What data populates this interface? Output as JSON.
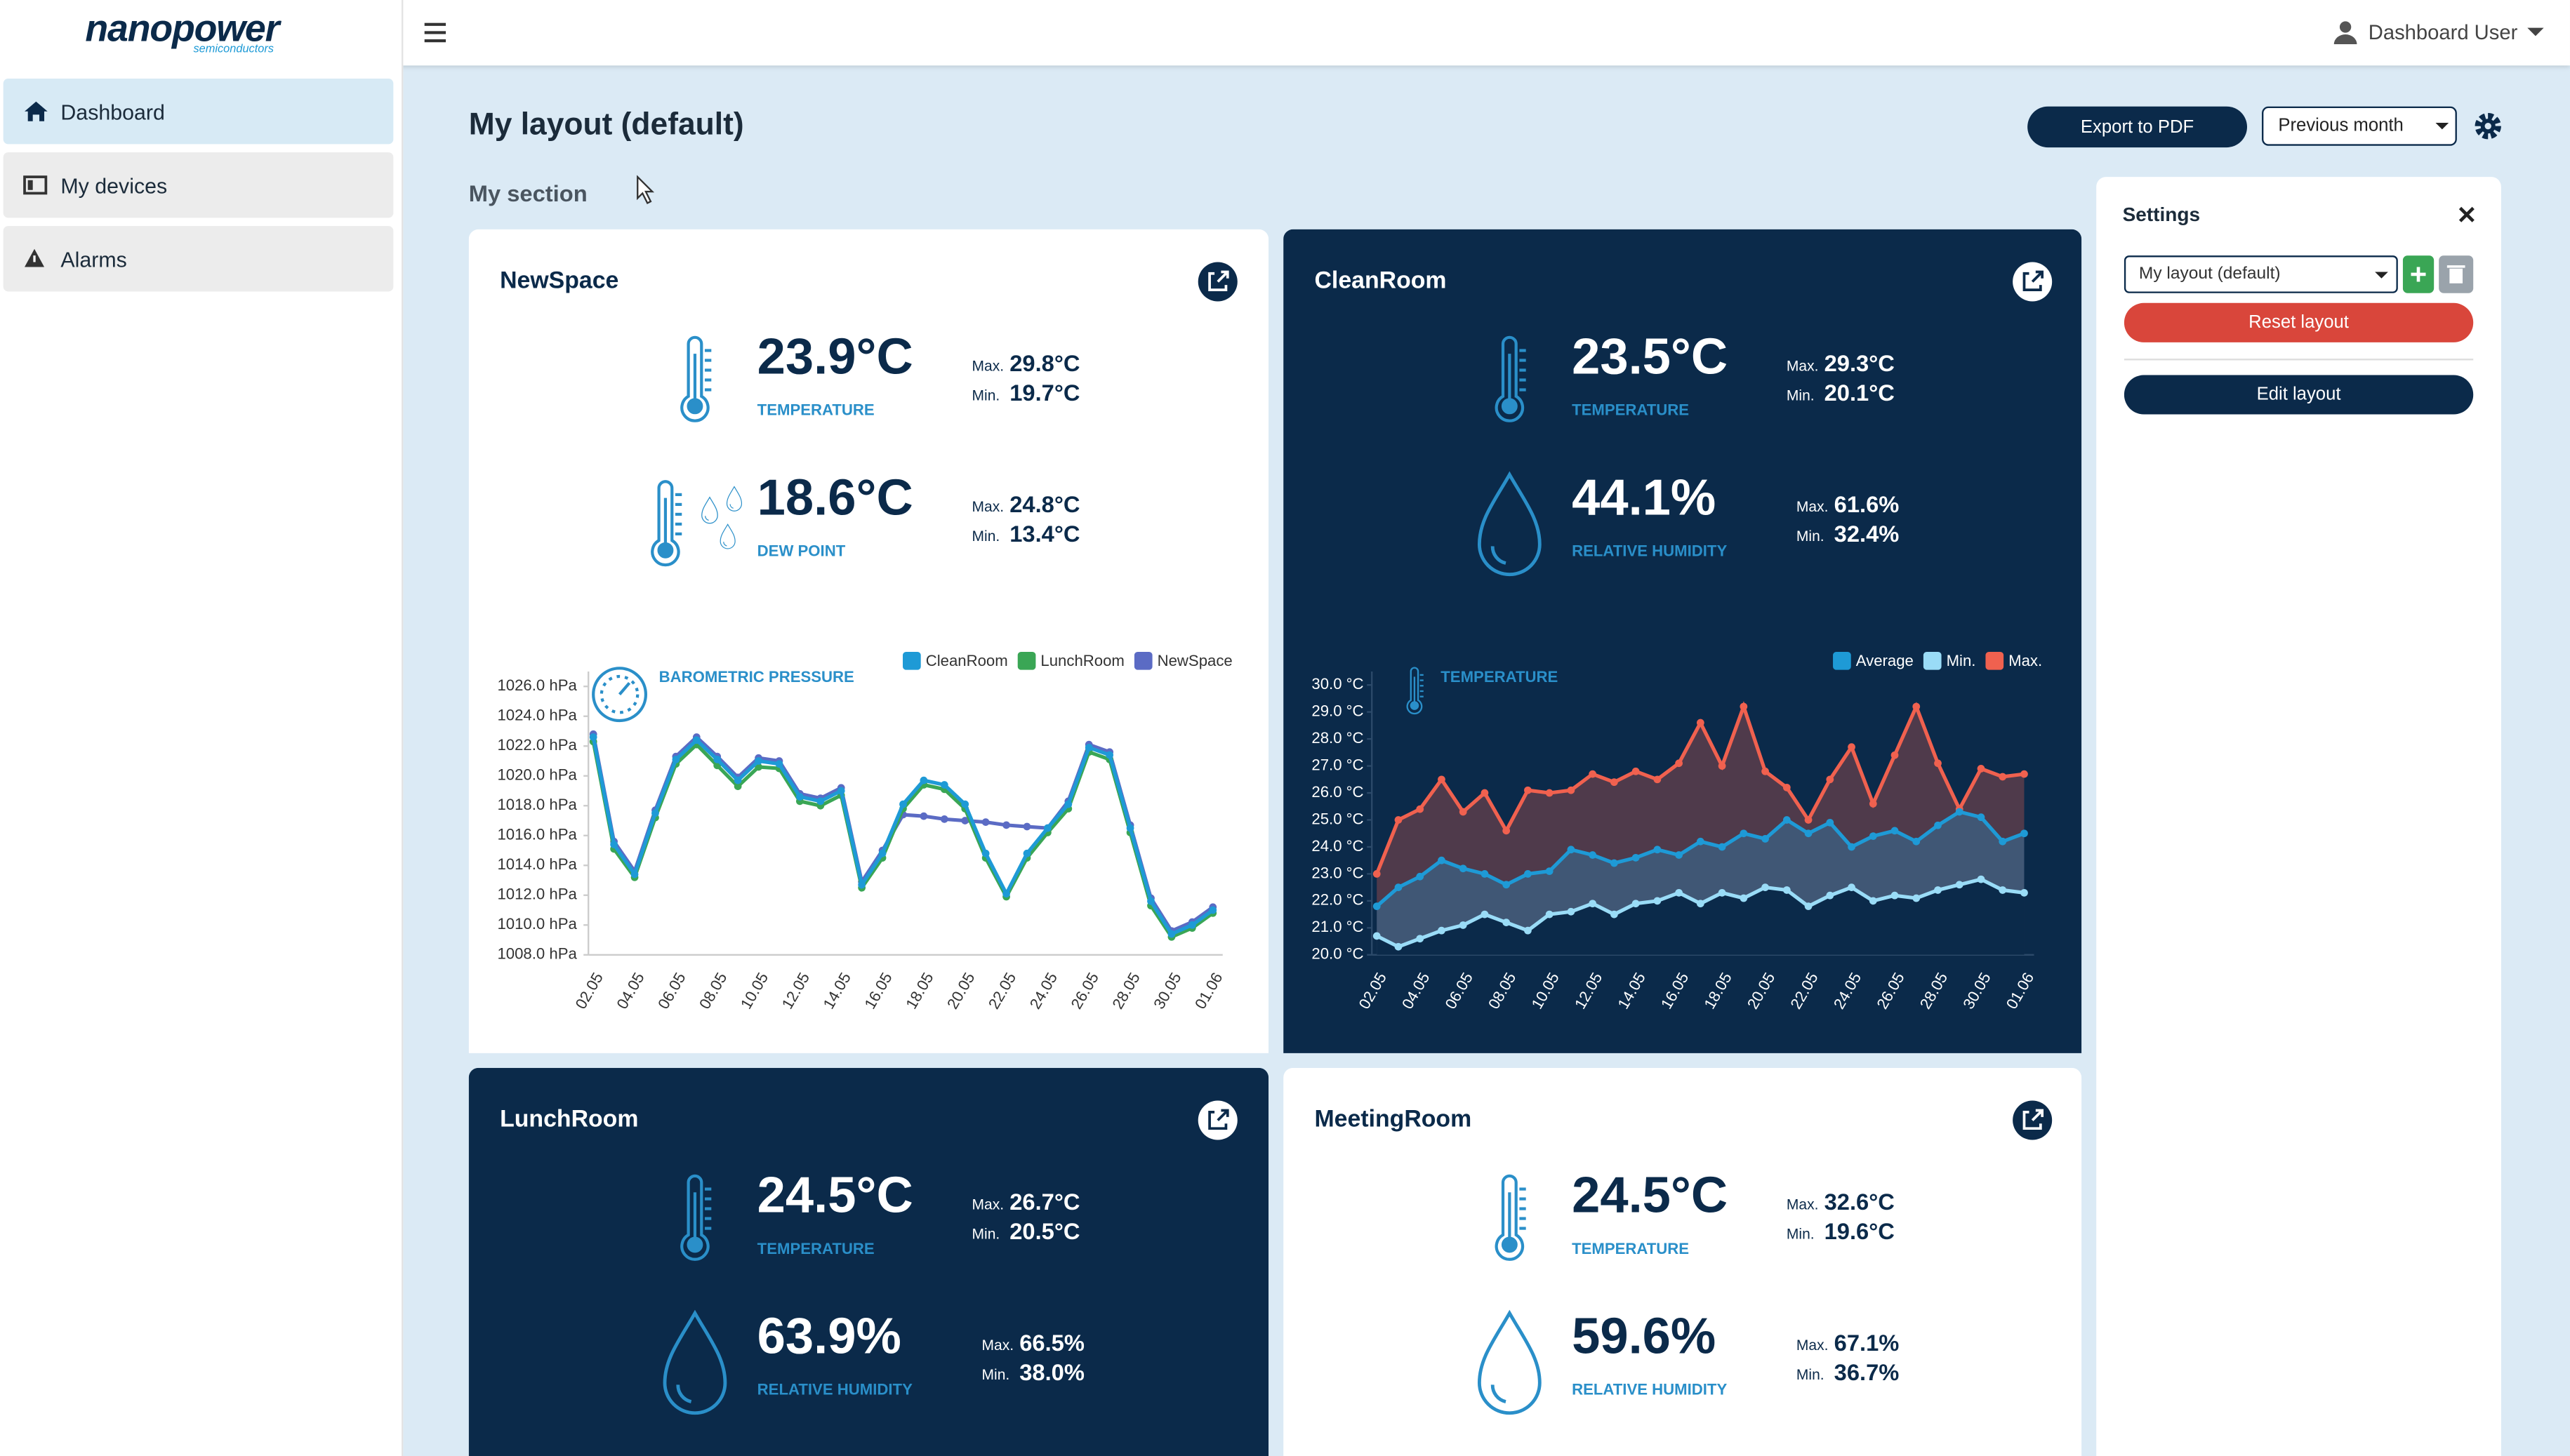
{
  "brand": {
    "name": "nanopower",
    "tagline": "semiconductors"
  },
  "sidebar": [
    "Dashboard",
    "My devices",
    "Alarms"
  ],
  "user": "Dashboard User",
  "page_title": "My layout (default)",
  "buttons": {
    "export": "Export to PDF",
    "period": "Previous month"
  },
  "section": "My section",
  "settings": {
    "title": "Settings",
    "layout": "My layout (default)",
    "reset": "Reset layout",
    "edit": "Edit layout"
  },
  "labels": {
    "max": "Max.",
    "min": "Min."
  },
  "cards": [
    {
      "name": "NewSpace",
      "background": "#ffffff",
      "metrics": [
        {
          "value": "23.9°C",
          "label": "TEMPERATURE",
          "max": "29.8°C",
          "min": "19.7°C"
        },
        {
          "value": "18.6°C",
          "label": "DEW POINT",
          "max": "24.8°C",
          "min": "13.4°C"
        }
      ],
      "chart": {
        "type": "line",
        "title": "BAROMETRIC PRESSURE",
        "fill_area": false,
        "categories": [
          "02.05",
          null,
          "04.05",
          null,
          "06.05",
          null,
          "08.05",
          null,
          "10.05",
          null,
          "12.05",
          null,
          "14.05",
          null,
          "16.05",
          null,
          "18.05",
          null,
          "20.05",
          null,
          "22.05",
          null,
          "24.05",
          null,
          "26.05",
          null,
          "28.05",
          null,
          "30.05",
          null,
          "01.06"
        ],
        "ylim": [
          1008,
          1027
        ],
        "yticks": [
          {
            "value": 1008,
            "label": "1008.0 hPa"
          },
          {
            "value": 1010,
            "label": "1010.0 hPa"
          },
          {
            "value": 1012,
            "label": "1012.0 hPa"
          },
          {
            "value": 1014,
            "label": "1014.0 hPa"
          },
          {
            "value": 1016,
            "label": "1016.0 hPa"
          },
          {
            "value": 1018,
            "label": "1018.0 hPa"
          },
          {
            "value": 1020,
            "label": "1020.0 hPa"
          },
          {
            "value": 1022,
            "label": "1022.0 hPa"
          },
          {
            "value": 1024,
            "label": "1024.0 hPa"
          },
          {
            "value": 1026,
            "label": "1026.0 hPa"
          }
        ],
        "series": [
          {
            "name": "CleanRoom",
            "color": "#1e9ad6",
            "values": [
              1022.6,
              1015.4,
              1013.4,
              1017.5,
              1021.1,
              1022.4,
              1021.1,
              1019.7,
              1021.0,
              1020.8,
              1018.6,
              1018.3,
              1019.0,
              1012.7,
              1014.8,
              1018.1,
              1019.7,
              1019.4,
              1018.1,
              1014.8,
              1012.1,
              1014.8,
              1016.5,
              1018.1,
              1021.9,
              1021.4,
              1016.5,
              1011.6,
              1009.4,
              1010.0,
              1011.0
            ]
          },
          {
            "name": "LunchRoom",
            "color": "#3aa655",
            "values": [
              1022.3,
              1015.1,
              1013.2,
              1017.2,
              1020.8,
              1022.1,
              1020.7,
              1019.3,
              1020.6,
              1020.5,
              1018.3,
              1018.0,
              1018.7,
              1012.5,
              1014.5,
              1017.8,
              1019.4,
              1019.1,
              1017.8,
              1014.5,
              1011.9,
              1014.5,
              1016.2,
              1017.8,
              1021.6,
              1021.1,
              1016.2,
              1011.3,
              1009.2,
              1009.8,
              1010.8
            ]
          },
          {
            "name": "NewSpace",
            "color": "#5b6bc4",
            "values": [
              1022.8,
              1015.6,
              1013.6,
              1017.7,
              1021.3,
              1022.6,
              1021.3,
              1019.9,
              1021.2,
              1021.0,
              1018.8,
              1018.5,
              1019.2,
              1012.9,
              1015.0,
              1017.4,
              1017.3,
              1017.1,
              1017.0,
              1016.9,
              1016.7,
              1016.6,
              1016.5,
              1018.3,
              1022.1,
              1021.6,
              1016.7,
              1011.8,
              1009.6,
              1010.2,
              1011.2
            ]
          }
        ]
      }
    },
    {
      "name": "CleanRoom",
      "background": "#0b2a4a",
      "metrics": [
        {
          "value": "23.5°C",
          "label": "TEMPERATURE",
          "max": "29.3°C",
          "min": "20.1°C"
        },
        {
          "value": "44.1%",
          "label": "RELATIVE HUMIDITY",
          "max": "61.6%",
          "min": "32.4%"
        }
      ],
      "chart": {
        "type": "line",
        "title": "TEMPERATURE",
        "fill_area": true,
        "categories": [
          "02.05",
          null,
          "04.05",
          null,
          "06.05",
          null,
          "08.05",
          null,
          "10.05",
          null,
          "12.05",
          null,
          "14.05",
          null,
          "16.05",
          null,
          "18.05",
          null,
          "20.05",
          null,
          "22.05",
          null,
          "24.05",
          null,
          "26.05",
          null,
          "28.05",
          null,
          "30.05",
          null,
          "01.06"
        ],
        "ylim": [
          20,
          30.5
        ],
        "yticks": [
          {
            "value": 20,
            "label": "20.0 °C"
          },
          {
            "value": 21,
            "label": "21.0 °C"
          },
          {
            "value": 22,
            "label": "22.0 °C"
          },
          {
            "value": 23,
            "label": "23.0 °C"
          },
          {
            "value": 24,
            "label": "24.0 °C"
          },
          {
            "value": 25,
            "label": "25.0 °C"
          },
          {
            "value": 26,
            "label": "26.0 °C"
          },
          {
            "value": 27,
            "label": "27.0 °C"
          },
          {
            "value": 28,
            "label": "28.0 °C"
          },
          {
            "value": 29,
            "label": "29.0 °C"
          },
          {
            "value": 30,
            "label": "30.0 °C"
          }
        ],
        "series": [
          {
            "name": "Average",
            "color": "#1e9ad6",
            "values": [
              21.8,
              22.5,
              22.9,
              23.5,
              23.2,
              23.0,
              22.6,
              23.0,
              23.1,
              23.9,
              23.7,
              23.4,
              23.6,
              23.9,
              23.7,
              24.2,
              24.0,
              24.5,
              24.3,
              25.0,
              24.5,
              24.9,
              24.0,
              24.4,
              24.6,
              24.2,
              24.8,
              25.3,
              25.1,
              24.2,
              24.5
            ]
          },
          {
            "name": "Min.",
            "color": "#9adcf7",
            "values": [
              20.7,
              20.3,
              20.6,
              20.9,
              21.1,
              21.5,
              21.2,
              20.9,
              21.5,
              21.6,
              21.9,
              21.5,
              21.9,
              22.0,
              22.3,
              21.9,
              22.3,
              22.1,
              22.5,
              22.4,
              21.8,
              22.2,
              22.5,
              22.0,
              22.2,
              22.1,
              22.4,
              22.6,
              22.8,
              22.4,
              22.3
            ]
          },
          {
            "name": "Max.",
            "color": "#f0614f",
            "values": [
              23.0,
              25.0,
              25.4,
              26.5,
              25.3,
              26.0,
              24.6,
              26.1,
              26.0,
              26.1,
              26.7,
              26.4,
              26.8,
              26.5,
              27.1,
              28.6,
              27.0,
              29.2,
              26.8,
              26.2,
              25.0,
              26.5,
              27.7,
              25.6,
              27.4,
              29.2,
              27.1,
              25.4,
              26.9,
              26.6,
              26.7
            ]
          }
        ]
      }
    },
    {
      "name": "LunchRoom",
      "background": "#0b2a4a",
      "metrics": [
        {
          "value": "24.5°C",
          "label": "TEMPERATURE",
          "max": "26.7°C",
          "min": "20.5°C"
        },
        {
          "value": "63.9%",
          "label": "RELATIVE HUMIDITY",
          "max": "66.5%",
          "min": "38.0%"
        }
      ]
    },
    {
      "name": "MeetingRoom",
      "background": "#ffffff",
      "metrics": [
        {
          "value": "24.5°C",
          "label": "TEMPERATURE",
          "max": "32.6°C",
          "min": "19.6°C"
        },
        {
          "value": "59.6%",
          "label": "RELATIVE HUMIDITY",
          "max": "67.1%",
          "min": "36.7%"
        }
      ]
    }
  ]
}
